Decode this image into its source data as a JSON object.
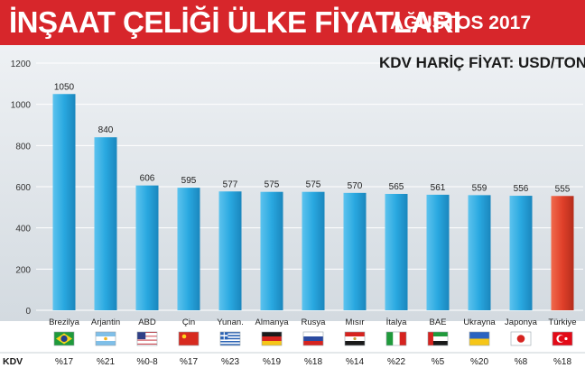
{
  "header": {
    "title": "İNŞAAT ÇELİĞİ ÜLKE FİYATLARI",
    "date": "AĞUSTOS 2017",
    "vat_note": "KDV HARİÇ FİYAT: USD/TON"
  },
  "chart_data": {
    "type": "bar",
    "title": "İNŞAAT ÇELİĞİ ÜLKE FİYATLARI",
    "subtitle": "AĞUSTOS 2017",
    "ylabel": "",
    "xlabel": "",
    "ylim": [
      0,
      1200
    ],
    "yticks": [
      0,
      200,
      400,
      600,
      800,
      1000,
      1200
    ],
    "grid": true,
    "categories": [
      "Brezilya",
      "Arjantin",
      "ABD",
      "Çin",
      "Yunan.",
      "Almanya",
      "Rusya",
      "Mısır",
      "İtalya",
      "BAE",
      "Ukrayna",
      "Japonya",
      "Türkiye"
    ],
    "values": [
      1050,
      840,
      606,
      595,
      577,
      575,
      575,
      570,
      565,
      561,
      559,
      556,
      555
    ],
    "value_labels": [
      "1050",
      "840",
      "606",
      "595",
      "577",
      "575",
      "575",
      "570",
      "565",
      "561",
      "559",
      "556",
      "555"
    ],
    "vat_row_label": "KDV",
    "vat_rates": [
      "%17",
      "%21",
      "%0-8",
      "%17",
      "%23",
      "%19",
      "%18",
      "%14",
      "%22",
      "%5",
      "%20",
      "%8",
      "%18"
    ],
    "flags": [
      "brazil-flag",
      "argentina-flag",
      "usa-flag",
      "china-flag",
      "greece-flag",
      "germany-flag",
      "russia-flag",
      "egypt-flag",
      "italy-flag",
      "uae-flag",
      "ukraine-flag",
      "japan-flag",
      "turkey-flag"
    ],
    "colors": {
      "bar": "#29a8e0",
      "bar_highlight": "#e0402a",
      "banner": "#d7262b",
      "plot_bg": "#dfe5ea"
    }
  }
}
